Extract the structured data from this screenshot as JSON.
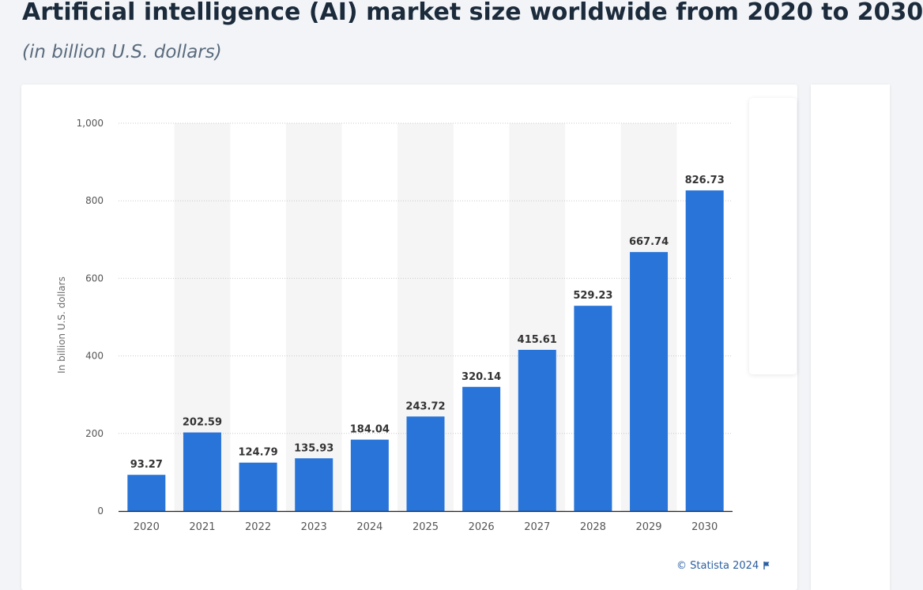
{
  "header": {
    "title": "Artificial intelligence (AI) market size worldwide from 2020 to 2030",
    "subtitle": "(in billion U.S. dollars)"
  },
  "credit": {
    "text": "© Statista 2024",
    "icon": "flag-icon"
  },
  "colors": {
    "bar": "#2874d8",
    "band": "#f5f5f5",
    "grid": "#c9c9c9",
    "axis_text": "#555555",
    "label_text": "#333333"
  },
  "chart_data": {
    "type": "bar",
    "categories": [
      "2020",
      "2021",
      "2022",
      "2023",
      "2024",
      "2025",
      "2026",
      "2027",
      "2028",
      "2029",
      "2030"
    ],
    "values": [
      93.27,
      202.59,
      124.79,
      135.93,
      184.04,
      243.72,
      320.14,
      415.61,
      529.23,
      667.74,
      826.73
    ],
    "value_labels": [
      "93.27",
      "202.59",
      "124.79",
      "135.93",
      "184.04",
      "243.72",
      "320.14",
      "415.61",
      "529.23",
      "667.74",
      "826.73"
    ],
    "title": "",
    "xlabel": "",
    "ylabel": "In billion U.S. dollars",
    "ylim": [
      0,
      1000
    ],
    "yticks": [
      0,
      200,
      400,
      600,
      800,
      1000
    ],
    "ytick_labels": [
      "0",
      "200",
      "400",
      "600",
      "800",
      "1,000"
    ],
    "grid": true,
    "grid_style": "dotted",
    "alternating_column_bands": true,
    "legend": "none"
  }
}
